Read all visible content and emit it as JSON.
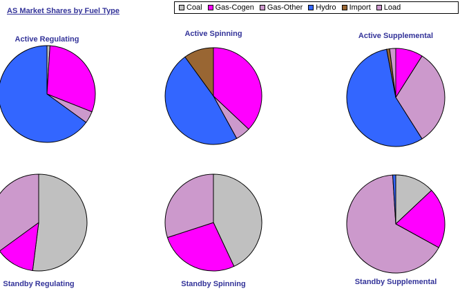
{
  "title": "AS Market Shares by Fuel Type",
  "colors": {
    "Coal": "#c0c0c0",
    "Gas-Cogen": "#ff00ff",
    "Gas-Other": "#cc99cc",
    "Hydro": "#3366ff",
    "Import": "#996633",
    "Load": "#cc99cc",
    "stroke": "#000000"
  },
  "legend": [
    "Coal",
    "Gas-Cogen",
    "Gas-Other",
    "Hydro",
    "Import",
    "Load"
  ],
  "chart_data": [
    {
      "type": "pie",
      "title": "Active Regulating",
      "slices": [
        {
          "label": "Coal",
          "value": 1
        },
        {
          "label": "Gas-Cogen",
          "value": 30
        },
        {
          "label": "Gas-Other",
          "value": 4
        },
        {
          "label": "Hydro",
          "value": 65
        }
      ]
    },
    {
      "type": "pie",
      "title": "Active Spinning",
      "slices": [
        {
          "label": "Gas-Cogen",
          "value": 37
        },
        {
          "label": "Gas-Other",
          "value": 5
        },
        {
          "label": "Hydro",
          "value": 48
        },
        {
          "label": "Import",
          "value": 10
        }
      ]
    },
    {
      "type": "pie",
      "title": "Active Supplemental",
      "slices": [
        {
          "label": "Gas-Cogen",
          "value": 9
        },
        {
          "label": "Gas-Other",
          "value": 32
        },
        {
          "label": "Hydro",
          "value": 56
        },
        {
          "label": "Import",
          "value": 1
        },
        {
          "label": "Load",
          "value": 2
        }
      ]
    },
    {
      "type": "pie",
      "title": "Standby Regulating",
      "slices": [
        {
          "label": "Coal",
          "value": 52
        },
        {
          "label": "Gas-Cogen",
          "value": 13
        },
        {
          "label": "Gas-Other",
          "value": 35
        }
      ]
    },
    {
      "type": "pie",
      "title": "Standby Spinning",
      "slices": [
        {
          "label": "Coal",
          "value": 43
        },
        {
          "label": "Gas-Cogen",
          "value": 27
        },
        {
          "label": "Gas-Other",
          "value": 30
        }
      ]
    },
    {
      "type": "pie",
      "title": "Standby Supplemental",
      "slices": [
        {
          "label": "Coal",
          "value": 13
        },
        {
          "label": "Gas-Cogen",
          "value": 20
        },
        {
          "label": "Gas-Other",
          "value": 66
        },
        {
          "label": "Hydro",
          "value": 1
        }
      ]
    }
  ]
}
